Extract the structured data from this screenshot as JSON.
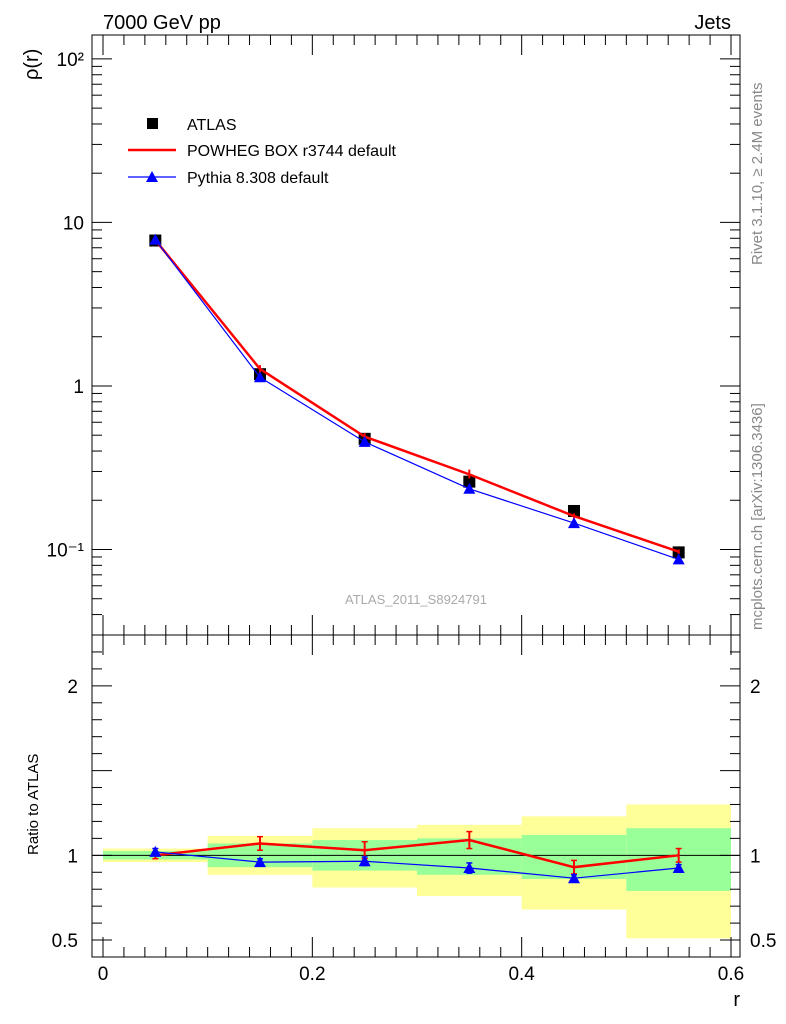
{
  "header": {
    "left": "7000 GeV pp",
    "right": "Jets"
  },
  "side_labels": {
    "rivet": "Rivet 3.1.10, ≥ 2.4M events",
    "mcplots": "mcplots.cern.ch [arXiv:1306.3436]"
  },
  "analysis_label": "ATLAS_2011_S8924791",
  "chart_data": [
    {
      "type": "line",
      "panel": "main",
      "ylabel": "ρ(r)",
      "yscale": "log",
      "ylim": [
        0.03,
        140
      ],
      "xlim": [
        0,
        0.6
      ],
      "ytick_labels": [
        "10²",
        "10",
        "1",
        "10⁻¹"
      ],
      "ytick_values": [
        100,
        10,
        1,
        0.1
      ],
      "legend_position": "top-left",
      "x": [
        0.05,
        0.15,
        0.25,
        0.35,
        0.45,
        0.55
      ],
      "series": [
        {
          "name": "ATLAS",
          "marker": "square",
          "color": "#000000",
          "values": [
            7.75,
            1.18,
            0.475,
            0.26,
            0.172,
            0.096
          ]
        },
        {
          "name": "POWHEG BOX r3744 default",
          "marker": "line",
          "color": "#ff0000",
          "values": [
            7.8,
            1.27,
            0.49,
            0.288,
            0.16,
            0.097
          ],
          "err_lo": [
            7.6,
            1.2,
            0.465,
            0.272,
            0.154,
            0.094
          ],
          "err_hi": [
            8.0,
            1.34,
            0.515,
            0.308,
            0.166,
            0.1
          ]
        },
        {
          "name": "Pythia 8.308 default",
          "marker": "triangle",
          "color": "#0000ff",
          "values": [
            7.85,
            1.13,
            0.455,
            0.235,
            0.145,
            0.087
          ]
        }
      ]
    },
    {
      "type": "line",
      "panel": "ratio",
      "ylabel": "Ratio to ATLAS",
      "xlabel": "r",
      "ylim": [
        0.4,
        2.3
      ],
      "xlim": [
        0,
        0.6
      ],
      "ytick_labels": [
        "2",
        "1",
        "0.5"
      ],
      "ytick_values": [
        2,
        1,
        0.5
      ],
      "xtick_labels": [
        "0",
        "0.2",
        "0.4",
        "0.6"
      ],
      "xtick_values": [
        0,
        0.2,
        0.4,
        0.6
      ],
      "reference": 1,
      "bands": {
        "bins": [
          [
            0,
            0.1
          ],
          [
            0.1,
            0.2
          ],
          [
            0.2,
            0.3
          ],
          [
            0.3,
            0.4
          ],
          [
            0.4,
            0.5
          ],
          [
            0.5,
            0.6
          ]
        ],
        "outer_color": "#ffff99",
        "inner_color": "#99ff99",
        "outer": [
          [
            0.96,
            1.04
          ],
          [
            0.885,
            1.115
          ],
          [
            0.81,
            1.16
          ],
          [
            0.76,
            1.18
          ],
          [
            0.68,
            1.23
          ],
          [
            0.51,
            1.3
          ]
        ],
        "inner": [
          [
            0.975,
            1.025
          ],
          [
            0.93,
            1.07
          ],
          [
            0.91,
            1.09
          ],
          [
            0.885,
            1.1
          ],
          [
            0.86,
            1.12
          ],
          [
            0.79,
            1.16
          ]
        ]
      },
      "x": [
        0.05,
        0.15,
        0.25,
        0.35,
        0.45,
        0.55
      ],
      "series": [
        {
          "name": "POWHEG BOX r3744 default",
          "color": "#ff0000",
          "values": [
            1.0,
            1.07,
            1.03,
            1.09,
            0.93,
            1.0
          ],
          "err_lo": [
            0.98,
            1.03,
            0.98,
            1.04,
            0.89,
            0.96
          ],
          "err_hi": [
            1.02,
            1.11,
            1.08,
            1.14,
            0.97,
            1.04
          ]
        },
        {
          "name": "Pythia 8.308 default",
          "color": "#0000ff",
          "values": [
            1.02,
            0.96,
            0.965,
            0.925,
            0.865,
            0.925
          ],
          "err_lo": [
            1.0,
            0.94,
            0.94,
            0.895,
            0.845,
            0.905
          ],
          "err_hi": [
            1.04,
            0.98,
            0.99,
            0.955,
            0.885,
            0.945
          ]
        }
      ]
    }
  ]
}
